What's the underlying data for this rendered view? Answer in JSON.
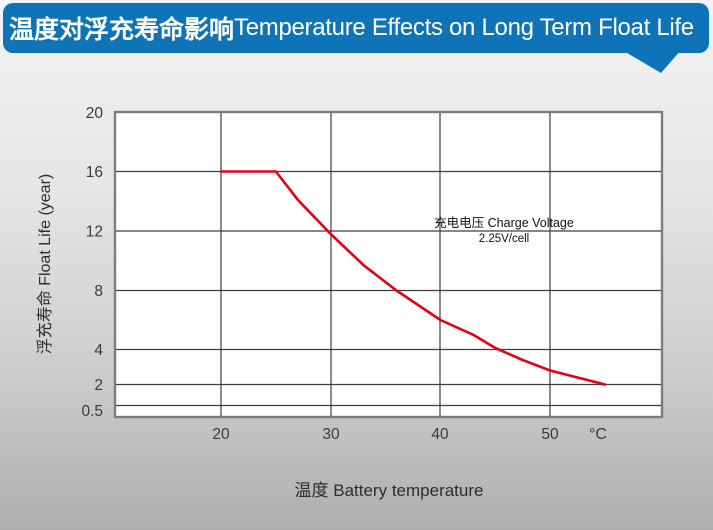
{
  "title": {
    "zh": "温度对浮充寿命影响",
    "en": "Temperature Effects on Long Term Float Life"
  },
  "colors": {
    "banner_blue": "#0f73b8",
    "curve_red": "#e60014",
    "plot_background": "#ffffff",
    "gridline": "#3e3e3e"
  },
  "chart_data": {
    "type": "line",
    "title": "温度对浮充寿命影响 Temperature Effects on Long Term Float Life",
    "xlabel": "温度 Battery temperature",
    "ylabel": "浮充寿命 Float Life (year)",
    "x_unit": "°C",
    "x_ticks": [
      "20",
      "30",
      "40",
      "50"
    ],
    "y_ticks": [
      "20",
      "16",
      "12",
      "8",
      "4",
      "2",
      "0.5"
    ],
    "x_range": [
      10,
      60
    ],
    "y_range": [
      0.5,
      20
    ],
    "grid": true,
    "legend_position": "none",
    "annotation": {
      "line1": "充电电压 Charge Voltage",
      "line2": "2.25V/cell"
    },
    "series": [
      {
        "name": "Float Life at 2.25V/cell",
        "color": "#e60014",
        "points": [
          [
            20,
            16
          ],
          [
            25,
            16
          ],
          [
            27,
            14.1
          ],
          [
            30,
            11.8
          ],
          [
            33,
            9.7
          ],
          [
            36,
            8
          ],
          [
            40,
            6
          ],
          [
            43,
            5
          ],
          [
            45,
            4.1
          ],
          [
            47.5,
            3.4
          ],
          [
            50,
            2.8
          ],
          [
            52.5,
            2.4
          ],
          [
            55,
            2
          ]
        ]
      }
    ]
  }
}
